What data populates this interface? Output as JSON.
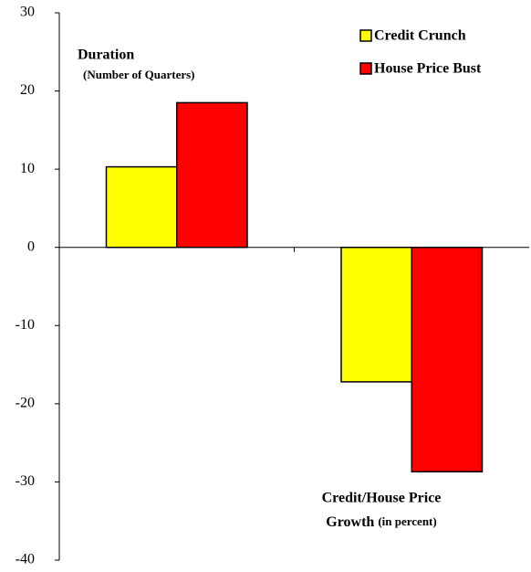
{
  "chart_data": {
    "type": "bar",
    "categories": [
      null,
      null
    ],
    "series": [
      {
        "name": "Credit Crunch",
        "color": "#ffff00",
        "values": [
          10.3,
          -17.2
        ]
      },
      {
        "name": "House Price Bust",
        "color": "#ff0000",
        "values": [
          18.5,
          -28.7
        ]
      }
    ],
    "ylim": [
      -40,
      30
    ],
    "yticks": [
      -40,
      -30,
      -20,
      -10,
      0,
      10,
      20,
      30
    ],
    "legend": "upper right",
    "annotations": [
      "Duration",
      "(Number of Quarters)",
      "Credit/House Price",
      "Growth",
      "(in percent)"
    ]
  }
}
